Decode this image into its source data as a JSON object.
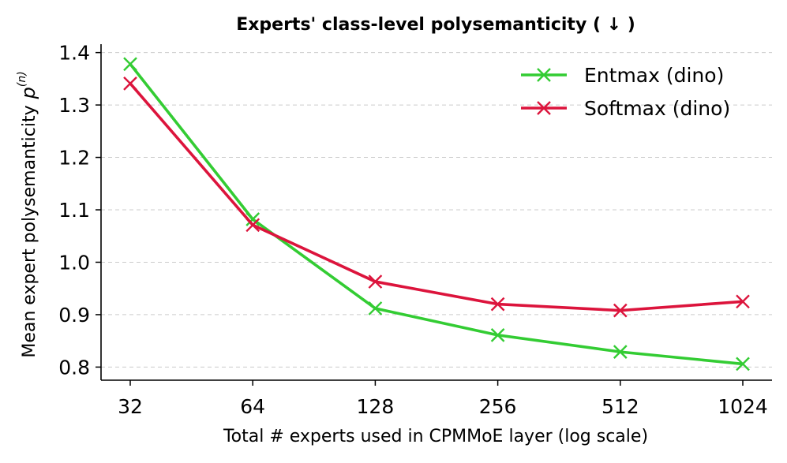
{
  "chart_data": {
    "type": "line",
    "title": "Experts' class-level polysemanticity ( ↓ )",
    "xlabel": "Total # experts used in CPMMoE layer (log scale)",
    "ylabel": "Mean expert polysemanticity",
    "ylabel_symbol": "p",
    "ylabel_superscript": "(n)",
    "categories": [
      "32",
      "64",
      "128",
      "256",
      "512",
      "1024"
    ],
    "x": [
      32,
      64,
      128,
      256,
      512,
      1024
    ],
    "xscale": "log2",
    "ylim": [
      0.775,
      1.41
    ],
    "yticks": [
      0.8,
      0.9,
      1.0,
      1.1,
      1.2,
      1.3,
      1.4
    ],
    "ytick_labels": [
      "0.8",
      "0.9",
      "1.0",
      "1.1",
      "1.2",
      "1.3",
      "1.4"
    ],
    "grid": "y-dashed",
    "legend_position": "top-right",
    "series": [
      {
        "name": "Entmax (dino)",
        "color": "#33cc33",
        "marker": "x",
        "values": [
          1.378,
          1.082,
          0.912,
          0.861,
          0.829,
          0.806
        ]
      },
      {
        "name": "Softmax (dino)",
        "color": "#dc143c",
        "marker": "x",
        "values": [
          1.341,
          1.071,
          0.963,
          0.92,
          0.908,
          0.925
        ]
      }
    ]
  }
}
